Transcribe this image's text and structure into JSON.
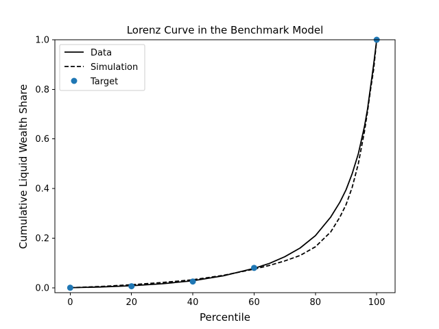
{
  "chart_data": {
    "type": "line",
    "title": "Lorenz Curve in the Benchmark Model",
    "xlabel": "Percentile",
    "ylabel": "Cumulative Liquid Wealth Share",
    "xlim": [
      -5,
      106
    ],
    "ylim": [
      -0.02,
      1.0
    ],
    "xticks": [
      0,
      20,
      40,
      60,
      80,
      100
    ],
    "yticks": [
      0.0,
      0.2,
      0.4,
      0.6,
      0.8,
      1.0
    ],
    "xtick_labels": [
      "0",
      "20",
      "40",
      "60",
      "80",
      "100"
    ],
    "ytick_labels": [
      "0.0",
      "0.2",
      "0.4",
      "0.6",
      "0.8",
      "1.0"
    ],
    "grid": false,
    "legend_position": "top-left",
    "series": [
      {
        "name": "Data",
        "style": "solid",
        "color": "#000000",
        "x": [
          0,
          10,
          20,
          30,
          40,
          50,
          60,
          65,
          70,
          75,
          80,
          85,
          88,
          90,
          92,
          94,
          96,
          97,
          98,
          99,
          100
        ],
        "y": [
          0.0,
          0.003,
          0.008,
          0.016,
          0.028,
          0.048,
          0.078,
          0.098,
          0.125,
          0.16,
          0.21,
          0.285,
          0.345,
          0.395,
          0.46,
          0.54,
          0.65,
          0.72,
          0.81,
          0.9,
          1.0
        ]
      },
      {
        "name": "Simulation",
        "style": "dashed",
        "color": "#000000",
        "x": [
          0,
          10,
          20,
          30,
          40,
          50,
          60,
          65,
          70,
          75,
          80,
          85,
          88,
          90,
          92,
          94,
          96,
          97,
          98,
          99,
          100
        ],
        "y": [
          0.0,
          0.005,
          0.012,
          0.021,
          0.032,
          0.05,
          0.075,
          0.09,
          0.108,
          0.13,
          0.165,
          0.225,
          0.285,
          0.335,
          0.405,
          0.5,
          0.63,
          0.71,
          0.8,
          0.88,
          1.0
        ]
      }
    ],
    "targets": {
      "name": "Target",
      "color": "#1f77b4",
      "x": [
        0,
        20,
        40,
        60,
        100
      ],
      "y": [
        0.0,
        0.006,
        0.025,
        0.08,
        1.0
      ]
    }
  }
}
